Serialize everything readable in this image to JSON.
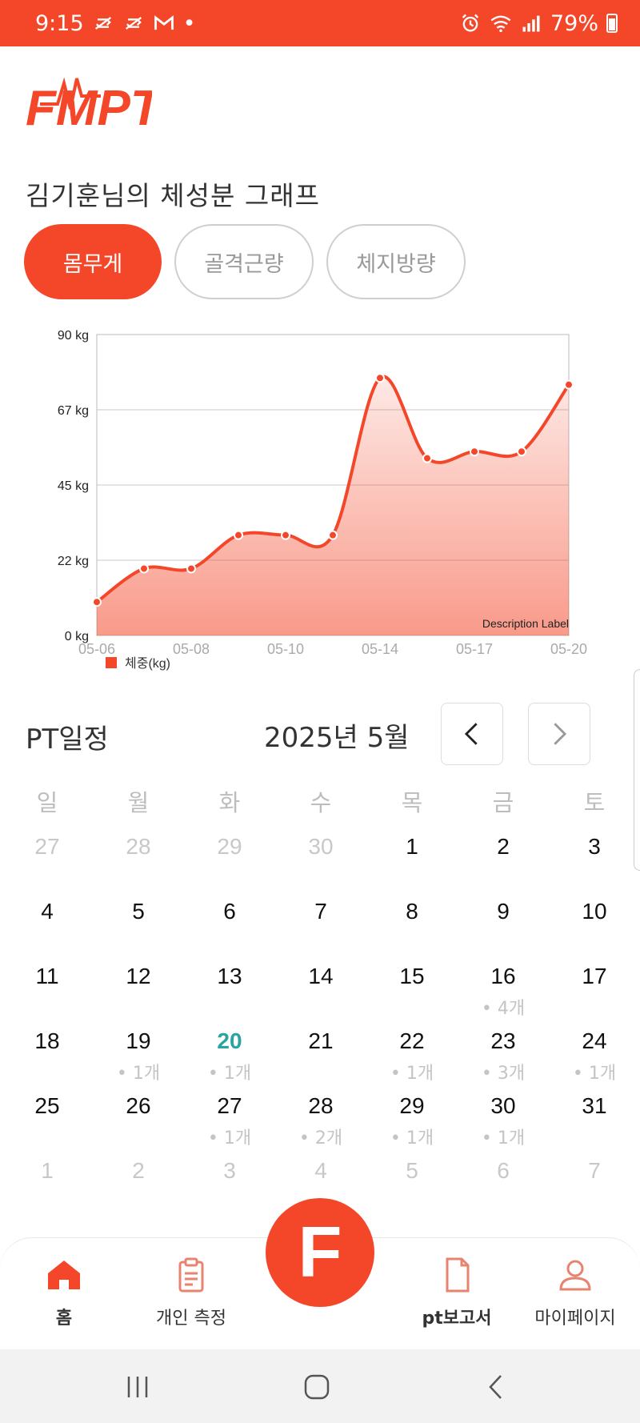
{
  "status_bar": {
    "time": "9:15",
    "battery": "79%"
  },
  "app": {
    "logo_text": "FMPT"
  },
  "page_title": "김기훈님의 체성분 그래프",
  "tabs": [
    {
      "label": "몸무게",
      "active": true
    },
    {
      "label": "골격근량",
      "active": false
    },
    {
      "label": "체지방량",
      "active": false
    }
  ],
  "chart_data": {
    "type": "area",
    "x_tick_labels": [
      "05-06",
      "05-08",
      "05-10",
      "05-14",
      "05-17",
      "05-20"
    ],
    "y_tick_labels": [
      "0 kg",
      "22 kg",
      "45 kg",
      "67 kg",
      "90 kg"
    ],
    "ylim": [
      0,
      90
    ],
    "values": [
      10,
      20,
      20,
      30,
      30,
      30,
      77,
      53,
      55,
      55,
      75
    ],
    "series_name": "체중(kg)",
    "description_label": "Description Label",
    "legend_placement": "bottom-left",
    "color": "#f4472a",
    "grid": true
  },
  "schedule": {
    "title": "PT일정",
    "month_label": "2025년 5월",
    "weekdays": [
      "일",
      "월",
      "화",
      "수",
      "목",
      "금",
      "토"
    ],
    "weeks": [
      [
        {
          "d": "27",
          "m": true,
          "c": ""
        },
        {
          "d": "28",
          "m": true,
          "c": ""
        },
        {
          "d": "29",
          "m": true,
          "c": ""
        },
        {
          "d": "30",
          "m": true,
          "c": ""
        },
        {
          "d": "1",
          "m": false,
          "c": ""
        },
        {
          "d": "2",
          "m": false,
          "c": ""
        },
        {
          "d": "3",
          "m": false,
          "c": ""
        }
      ],
      [
        {
          "d": "4",
          "m": false,
          "c": ""
        },
        {
          "d": "5",
          "m": false,
          "c": ""
        },
        {
          "d": "6",
          "m": false,
          "c": ""
        },
        {
          "d": "7",
          "m": false,
          "c": ""
        },
        {
          "d": "8",
          "m": false,
          "c": ""
        },
        {
          "d": "9",
          "m": false,
          "c": ""
        },
        {
          "d": "10",
          "m": false,
          "c": ""
        }
      ],
      [
        {
          "d": "11",
          "m": false,
          "c": ""
        },
        {
          "d": "12",
          "m": false,
          "c": ""
        },
        {
          "d": "13",
          "m": false,
          "c": ""
        },
        {
          "d": "14",
          "m": false,
          "c": ""
        },
        {
          "d": "15",
          "m": false,
          "c": ""
        },
        {
          "d": "16",
          "m": false,
          "c": "• 4개"
        },
        {
          "d": "17",
          "m": false,
          "c": ""
        }
      ],
      [
        {
          "d": "18",
          "m": false,
          "c": ""
        },
        {
          "d": "19",
          "m": false,
          "c": "• 1개"
        },
        {
          "d": "20",
          "m": false,
          "c": "• 1개",
          "today": true
        },
        {
          "d": "21",
          "m": false,
          "c": ""
        },
        {
          "d": "22",
          "m": false,
          "c": "• 1개"
        },
        {
          "d": "23",
          "m": false,
          "c": "• 3개"
        },
        {
          "d": "24",
          "m": false,
          "c": "• 1개"
        }
      ],
      [
        {
          "d": "25",
          "m": false,
          "c": ""
        },
        {
          "d": "26",
          "m": false,
          "c": ""
        },
        {
          "d": "27",
          "m": false,
          "c": "• 1개"
        },
        {
          "d": "28",
          "m": false,
          "c": "• 2개"
        },
        {
          "d": "29",
          "m": false,
          "c": "• 1개"
        },
        {
          "d": "30",
          "m": false,
          "c": "• 1개"
        },
        {
          "d": "31",
          "m": false,
          "c": ""
        }
      ],
      [
        {
          "d": "1",
          "m": true,
          "c": ""
        },
        {
          "d": "2",
          "m": true,
          "c": ""
        },
        {
          "d": "3",
          "m": true,
          "c": ""
        },
        {
          "d": "4",
          "m": true,
          "c": ""
        },
        {
          "d": "5",
          "m": true,
          "c": ""
        },
        {
          "d": "6",
          "m": true,
          "c": ""
        },
        {
          "d": "7",
          "m": true,
          "c": ""
        }
      ]
    ]
  },
  "bottom_nav": {
    "home": "홈",
    "measure": "개인 측정",
    "fab": "F",
    "report": "pt보고서",
    "mypage": "마이페이지"
  },
  "colors": {
    "accent": "#f4472a",
    "today": "#2aa3a3"
  },
  "icons": [
    "home-icon",
    "clipboard-icon",
    "document-icon",
    "user-icon",
    "chevron-left-icon",
    "chevron-right-icon"
  ]
}
